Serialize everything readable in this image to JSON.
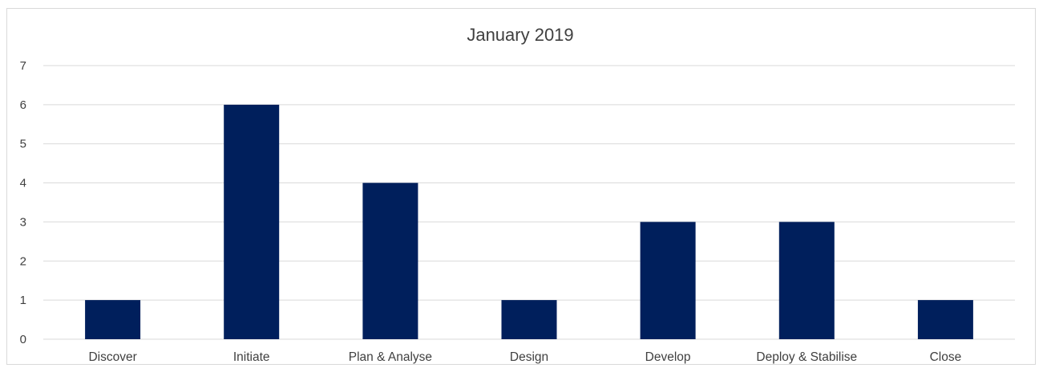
{
  "chart_data": {
    "type": "bar",
    "title": "January 2019",
    "xlabel": "",
    "ylabel": "",
    "categories": [
      "Discover",
      "Initiate",
      "Plan & Analyse",
      "Design",
      "Develop",
      "Deploy & Stabilise",
      "Close"
    ],
    "values": [
      1,
      6,
      4,
      1,
      3,
      3,
      1
    ],
    "ylim": [
      0,
      7
    ],
    "yticks": [
      "0",
      "1",
      "2",
      "3",
      "4",
      "5",
      "6",
      "7"
    ],
    "grid": true,
    "legend": "none",
    "bar_color": "#001f5c",
    "grid_color": "#d9d9d9"
  }
}
